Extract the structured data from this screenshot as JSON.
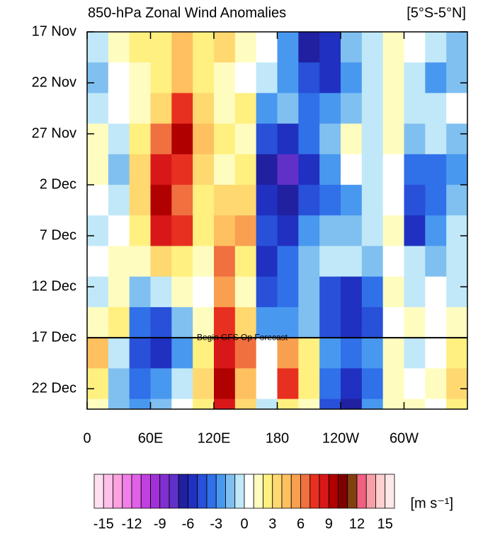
{
  "chart_data": {
    "type": "heatmap",
    "title": "850-hPa Zonal Wind Anomalies",
    "region_label": "[5°S-5°N]",
    "xbins": [
      0,
      20,
      40,
      60,
      80,
      100,
      120,
      140,
      160,
      180,
      200,
      220,
      240,
      260,
      280,
      300,
      320,
      340,
      360
    ],
    "ybins": [
      0,
      3,
      6,
      9,
      12,
      15,
      18,
      21,
      24,
      27,
      30,
      33,
      36,
      39
    ],
    "xlim": [
      0,
      360
    ],
    "ylim": [
      0,
      37
    ],
    "xticks": [
      0,
      {
        "value": 60,
        "label": "60E"
      },
      {
        "value": 120,
        "label": "120E"
      },
      180,
      {
        "value": 240,
        "label": "120W"
      },
      {
        "value": 300,
        "label": "60W"
      }
    ],
    "yticks": [
      {
        "value": 0,
        "label": "17 Nov"
      },
      {
        "value": 5,
        "label": "22 Nov"
      },
      {
        "value": 10,
        "label": "27 Nov"
      },
      {
        "value": 15,
        "label": "2 Dec"
      },
      {
        "value": 20,
        "label": "7 Dec"
      },
      {
        "value": 25,
        "label": "12 Dec"
      },
      {
        "value": 30,
        "label": "17 Dec"
      },
      {
        "value": 35,
        "label": "22 Dec"
      }
    ],
    "values": [
      [
        -1,
        1,
        2,
        2,
        4,
        2,
        3,
        1,
        0,
        -3,
        -7,
        -6,
        -2,
        -1,
        1,
        0,
        -1,
        -2
      ],
      [
        -2,
        0,
        1,
        2,
        4,
        2,
        1,
        0,
        -1,
        -3,
        -5,
        -6,
        -3,
        -1,
        1,
        -1,
        -3,
        -2
      ],
      [
        -1,
        0,
        1,
        3,
        7,
        3,
        1,
        2,
        -3,
        -2,
        -4,
        -3,
        -2,
        -1,
        1,
        -1,
        -1,
        0
      ],
      [
        1,
        -1,
        2,
        6,
        9,
        4,
        2,
        1,
        -5,
        -6,
        -4,
        -2,
        1,
        -1,
        1,
        -2,
        -1,
        -2
      ],
      [
        1,
        -2,
        3,
        8,
        7,
        3,
        1,
        2,
        -7,
        -8,
        -6,
        -3,
        0,
        -1,
        0,
        -4,
        -4,
        -3
      ],
      [
        0,
        -1,
        3,
        9,
        6,
        2,
        3,
        3,
        -6,
        -7,
        -5,
        -4,
        -3,
        -1,
        0,
        -5,
        -4,
        -2
      ],
      [
        -1,
        0,
        2,
        8,
        7,
        2,
        4,
        5,
        -5,
        -6,
        -3,
        -2,
        -2,
        -1,
        1,
        -6,
        -3,
        -1
      ],
      [
        0,
        1,
        1,
        3,
        2,
        1,
        6,
        2,
        -6,
        -4,
        -2,
        -1,
        -1,
        -2,
        0,
        -1,
        -2,
        -1
      ],
      [
        -1,
        1,
        -2,
        -1,
        1,
        0,
        5,
        1,
        -5,
        -4,
        -2,
        -5,
        -6,
        -4,
        1,
        -1,
        0,
        -1
      ],
      [
        1,
        2,
        -4,
        -5,
        -2,
        1,
        7,
        3,
        -3,
        -3,
        -2,
        -5,
        -6,
        -5,
        0,
        1,
        0,
        1
      ],
      [
        4,
        -1,
        -5,
        -6,
        -3,
        2,
        8,
        6,
        0,
        5,
        2,
        -3,
        -4,
        -3,
        1,
        -1,
        0,
        2
      ],
      [
        2,
        -2,
        -4,
        -3,
        -1,
        3,
        9,
        4,
        0,
        7,
        2,
        -4,
        -6,
        -4,
        1,
        0,
        1,
        3
      ],
      [
        1,
        -2,
        -3,
        -2,
        0,
        2,
        8,
        3,
        -1,
        2,
        1,
        -5,
        -7,
        -3,
        1,
        1,
        0,
        2
      ]
    ],
    "annotation": {
      "text": "Begin GFS Op Forecast",
      "y": 30
    },
    "colorbar": {
      "levels": [
        -15,
        -14,
        -13,
        -12,
        -11,
        -10,
        -9,
        -8,
        -7,
        -6,
        -5,
        -4,
        -3,
        -2,
        -1,
        0,
        1,
        2,
        3,
        4,
        5,
        6,
        7,
        8,
        9,
        10,
        11,
        12,
        13,
        14,
        15
      ],
      "lim": [
        -16,
        16
      ],
      "ticks": [
        -15,
        -12,
        -9,
        -6,
        -3,
        0,
        3,
        6,
        9,
        12,
        15
      ],
      "colors": [
        "#ffe0f0",
        "#ffc0e8",
        "#ffa0e0",
        "#f080e8",
        "#e060e8",
        "#c040e0",
        "#a030d8",
        "#8030d0",
        "#6030c8",
        "#2020a0",
        "#2030c0",
        "#2850d8",
        "#3070e8",
        "#4898f0",
        "#80c0f0",
        "#c0e8f8",
        "#ffffff",
        "#fffcc0",
        "#fff080",
        "#ffd870",
        "#ffc060",
        "#f8a050",
        "#f07040",
        "#e83020",
        "#d81818",
        "#b00000",
        "#800000",
        "#804010",
        "#f06080",
        "#f8a0a8",
        "#ffd0d0",
        "#ffe8e8"
      ],
      "label": "[m s⁻¹]"
    }
  }
}
